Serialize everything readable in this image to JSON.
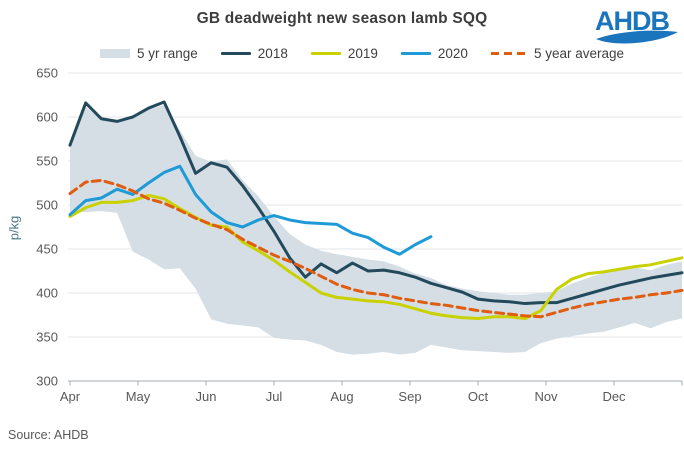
{
  "header": {
    "title": "GB deadweight new season lamb SQQ",
    "logo_text": "AHDB"
  },
  "footer": {
    "source": "Source: AHDB"
  },
  "colors": {
    "title_text": "#3d3d3d",
    "axis_text": "#595959",
    "ylabel_text": "#4e7987",
    "legend_text": "#3f3f3f",
    "logo_blue": "#1b75bc",
    "grid": "#e3e6e8",
    "axis_line": "#a6adb3",
    "band": "#d5dee4",
    "s2018": "#234a5c",
    "s2019": "#c9d200",
    "s2020": "#1e9ad6",
    "avg": "#e05c10"
  },
  "chart_data": {
    "type": "line",
    "title": "GB deadweight new season lamb SQQ",
    "ylabel": "p/kg",
    "ylim": [
      300,
      650
    ],
    "yticks": [
      300,
      350,
      400,
      450,
      500,
      550,
      600,
      650
    ],
    "x_months": [
      "Apr",
      "May",
      "Jun",
      "Jul",
      "Aug",
      "Sep",
      "Oct",
      "Nov",
      "Dec"
    ],
    "x_unit": "weekly points, Apr week 1 to Dec week 5",
    "grid": "horizontal only",
    "legend_position": "top",
    "band": {
      "name": "5 yr range",
      "upper": [
        568,
        612,
        597,
        594,
        599,
        608,
        614,
        585,
        556,
        549,
        552,
        528,
        510,
        487,
        467,
        455,
        448,
        444,
        441,
        438,
        436,
        430,
        422,
        417,
        409,
        405,
        402,
        400,
        398,
        398,
        400,
        402,
        411,
        417,
        423,
        427,
        429,
        426,
        432,
        436
      ],
      "lower": [
        492,
        492,
        493,
        491,
        447,
        438,
        427,
        428,
        405,
        370,
        365,
        363,
        361,
        349,
        347,
        346,
        341,
        333,
        330,
        331,
        333,
        330,
        332,
        341,
        338,
        335,
        334,
        333,
        332,
        333,
        343,
        348,
        351,
        354,
        356,
        361,
        366,
        360,
        367,
        371
      ]
    },
    "series": [
      {
        "name": "2018",
        "color_key": "s2018",
        "dash": null,
        "width": 3,
        "values": [
          568,
          616,
          598,
          595,
          600,
          610,
          617,
          578,
          536,
          548,
          543,
          522,
          497,
          470,
          440,
          418,
          433,
          423,
          434,
          425,
          426,
          423,
          418,
          411,
          406,
          401,
          393,
          391,
          390,
          388,
          389,
          389,
          394,
          399,
          404,
          409,
          413,
          417,
          420,
          423
        ]
      },
      {
        "name": "2019",
        "color_key": "s2019",
        "dash": null,
        "width": 3,
        "values": [
          487,
          497,
          503,
          503,
          505,
          511,
          507,
          496,
          486,
          477,
          475,
          458,
          448,
          437,
          424,
          412,
          400,
          395,
          393,
          391,
          390,
          387,
          382,
          377,
          374,
          372,
          371,
          373,
          373,
          371,
          380,
          404,
          416,
          422,
          424,
          427,
          430,
          432,
          436,
          440
        ]
      },
      {
        "name": "2020",
        "color_key": "s2020",
        "dash": null,
        "width": 3,
        "values": [
          489,
          505,
          508,
          518,
          512,
          525,
          537,
          544,
          512,
          492,
          480,
          475,
          483,
          488,
          483,
          480,
          479,
          478,
          468,
          463,
          452,
          444,
          455,
          464
        ]
      },
      {
        "name": "5 year average",
        "color_key": "avg",
        "dash": "8,5",
        "width": 3,
        "values": [
          513,
          526,
          528,
          523,
          516,
          507,
          502,
          494,
          485,
          478,
          472,
          461,
          452,
          443,
          436,
          428,
          419,
          410,
          404,
          400,
          398,
          394,
          391,
          388,
          386,
          383,
          380,
          378,
          376,
          374,
          373,
          378,
          383,
          387,
          390,
          393,
          395,
          398,
          400,
          403
        ]
      }
    ]
  }
}
